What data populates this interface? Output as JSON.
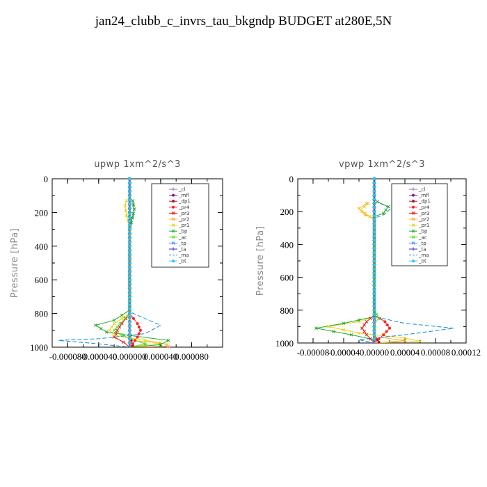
{
  "title": "jan24_clubb_c_invrs_tau_bkgndp  BUDGET at280E,5N",
  "chart_data": [
    {
      "type": "line",
      "title": "upwp   1xm^2/s^3",
      "ylabel": "Pressure [hPa]",
      "xlim": [
        -0.0001,
        0.00012
      ],
      "ylim": [
        1000,
        0
      ],
      "xticks": [
        -8e-05,
        -4e-05,
        0,
        4e-05,
        8e-05
      ],
      "xtick_labels": [
        "-0.000080",
        "-0.000040",
        "0.000000",
        "0.000040",
        "0.000080"
      ],
      "yticks": [
        0,
        200,
        400,
        600,
        800,
        1000
      ],
      "ytick_labels": [
        "0",
        "200",
        "400",
        "600",
        "800",
        "1000"
      ],
      "legend_position": "top-right",
      "series": [
        {
          "name": "_cl",
          "color": "#9966cc",
          "dash": "",
          "marker": "+",
          "points": [
            [
              0,
              0
            ],
            [
              0,
              1000
            ]
          ]
        },
        {
          "name": "_mfl",
          "color": "#7b1f8a",
          "dash": "",
          "marker": "o",
          "points": [
            [
              0,
              0
            ],
            [
              0,
              1000
            ]
          ]
        },
        {
          "name": "_dp1",
          "color": "#aa1133",
          "dash": "",
          "marker": "o",
          "points": [
            [
              0,
              0
            ],
            [
              0,
              900
            ],
            [
              2e-06,
              960
            ],
            [
              4e-06,
              990
            ],
            [
              0,
              1000
            ]
          ]
        },
        {
          "name": "_pr4",
          "color": "#ff2222",
          "dash": "",
          "marker": "o",
          "points": [
            [
              0,
              0
            ],
            [
              0,
              800
            ],
            [
              1e-05,
              860
            ],
            [
              1.4e-05,
              900
            ],
            [
              1e-05,
              940
            ],
            [
              4e-06,
              980
            ],
            [
              0,
              1000
            ]
          ]
        },
        {
          "name": "_pr3",
          "color": "#ee1111",
          "dash": "",
          "marker": "x",
          "points": [
            [
              0,
              0
            ],
            [
              0,
              800
            ],
            [
              -1e-05,
              860
            ],
            [
              -1.6e-05,
              900
            ],
            [
              -2e-05,
              940
            ],
            [
              -8e-06,
              970
            ],
            [
              0,
              1000
            ]
          ]
        },
        {
          "name": "_pr2",
          "color": "#ffaa33",
          "dash": "",
          "marker": "x",
          "points": [
            [
              0,
              0
            ],
            [
              0,
              960
            ],
            [
              4e-05,
              975
            ],
            [
              4.8e-05,
              985
            ],
            [
              5e-05,
              995
            ],
            [
              0,
              1000
            ]
          ]
        },
        {
          "name": "_pr1",
          "color": "#e6d21a",
          "dash": "",
          "marker": "x",
          "points": [
            [
              -4e-06,
              130
            ],
            [
              -6e-06,
              160
            ],
            [
              -4e-06,
              220
            ],
            [
              0,
              280
            ],
            [
              0,
              800
            ],
            [
              -2e-05,
              860
            ],
            [
              -2.6e-05,
              900
            ],
            [
              -2e-05,
              930
            ],
            [
              2e-05,
              960
            ],
            [
              4e-05,
              975
            ],
            [
              0,
              1000
            ]
          ]
        },
        {
          "name": "_bp",
          "color": "#22aa22",
          "dash": "",
          "marker": "x",
          "points": [
            [
              4e-06,
              130
            ],
            [
              6e-06,
              180
            ],
            [
              2e-06,
              260
            ],
            [
              0,
              300
            ],
            [
              0,
              780
            ],
            [
              -2e-05,
              840
            ],
            [
              -4.4e-05,
              870
            ],
            [
              -3e-05,
              910
            ],
            [
              0,
              930
            ],
            [
              5e-05,
              960
            ],
            [
              4e-05,
              985
            ],
            [
              0,
              1000
            ]
          ]
        },
        {
          "name": "_ac",
          "color": "#55dd22",
          "dash": "",
          "marker": "x",
          "points": [
            [
              0,
              0
            ],
            [
              0,
              800
            ],
            [
              -1.2e-05,
              860
            ],
            [
              -2e-05,
              900
            ],
            [
              0,
              950
            ],
            [
              2e-05,
              980
            ],
            [
              0,
              1000
            ]
          ]
        },
        {
          "name": "_tp",
          "color": "#3399ff",
          "dash": "",
          "marker": "x",
          "points": [
            [
              0,
              0
            ],
            [
              0,
              1000
            ]
          ]
        },
        {
          "name": "_ta",
          "color": "#4422cc",
          "dash": "",
          "marker": "+",
          "points": [
            [
              0,
              0
            ],
            [
              0,
              1000
            ]
          ]
        },
        {
          "name": "_ma",
          "color": "#1188dd",
          "dash": "6,3",
          "marker": "",
          "points": [
            [
              4e-06,
              140
            ],
            [
              6e-06,
              200
            ],
            [
              2e-06,
              280
            ],
            [
              0,
              300
            ],
            [
              0,
              790
            ],
            [
              2e-05,
              830
            ],
            [
              4e-05,
              870
            ],
            [
              2e-05,
              920
            ],
            [
              -4e-05,
              950
            ],
            [
              -9.2e-05,
              960
            ],
            [
              -4e-05,
              980
            ],
            [
              0,
              1000
            ]
          ]
        },
        {
          "name": "_bt",
          "color": "#22ccee",
          "dash": "",
          "marker": "o",
          "points": [
            [
              0,
              0
            ],
            [
              0,
              1000
            ]
          ]
        }
      ]
    },
    {
      "type": "line",
      "title": "vpwp   1xm^2/s^3",
      "ylabel": "Pressure [hPa]",
      "xlim": [
        -0.0001,
        0.00012
      ],
      "ylim": [
        1000,
        0
      ],
      "xticks": [
        -8e-05,
        -4e-05,
        0,
        4e-05,
        8e-05,
        0.00012
      ],
      "xtick_labels": [
        "-0.00008",
        "-0.00004",
        "0.00000",
        "0.00004",
        "0.00008",
        "0.00012"
      ],
      "yticks": [
        0,
        200,
        400,
        600,
        800,
        1000
      ],
      "ytick_labels": [
        "0",
        "200",
        "400",
        "600",
        "800",
        "1000"
      ],
      "legend_position": "top-right",
      "series": [
        {
          "name": "_cl",
          "color": "#9966cc",
          "dash": "",
          "marker": "+",
          "points": [
            [
              0,
              0
            ],
            [
              0,
              1000
            ]
          ]
        },
        {
          "name": "_mfl",
          "color": "#7b1f8a",
          "dash": "",
          "marker": "o",
          "points": [
            [
              0,
              0
            ],
            [
              0,
              1000
            ]
          ]
        },
        {
          "name": "_dp1",
          "color": "#aa1133",
          "dash": "",
          "marker": "o",
          "points": [
            [
              0,
              0
            ],
            [
              0,
              960
            ],
            [
              4e-06,
              980
            ],
            [
              6e-06,
              995
            ],
            [
              0,
              1000
            ]
          ]
        },
        {
          "name": "_pr4",
          "color": "#ff2222",
          "dash": "",
          "marker": "o",
          "points": [
            [
              0,
              0
            ],
            [
              0,
              830
            ],
            [
              1.4e-05,
              870
            ],
            [
              2e-05,
              910
            ],
            [
              1.2e-05,
              950
            ],
            [
              0,
              1000
            ]
          ]
        },
        {
          "name": "_pr3",
          "color": "#ee1111",
          "dash": "",
          "marker": "x",
          "points": [
            [
              0,
              0
            ],
            [
              0,
              830
            ],
            [
              -1e-05,
              870
            ],
            [
              -1.6e-05,
              910
            ],
            [
              -1e-05,
              950
            ],
            [
              0,
              1000
            ]
          ]
        },
        {
          "name": "_pr2",
          "color": "#ffaa33",
          "dash": "",
          "marker": "x",
          "points": [
            [
              -1e-05,
              150
            ],
            [
              -2e-05,
              180
            ],
            [
              -1.2e-05,
              220
            ],
            [
              0,
              240
            ],
            [
              0,
              960
            ],
            [
              4e-05,
              985
            ],
            [
              0,
              1000
            ]
          ]
        },
        {
          "name": "_pr1",
          "color": "#e6d21a",
          "dash": "",
          "marker": "x",
          "points": [
            [
              -8e-06,
              150
            ],
            [
              -1.8e-05,
              190
            ],
            [
              -6e-06,
              230
            ],
            [
              0,
              250
            ],
            [
              0,
              840
            ],
            [
              -2e-05,
              870
            ],
            [
              -6e-05,
              900
            ],
            [
              -2e-05,
              940
            ],
            [
              4e-05,
              970
            ],
            [
              6e-05,
              990
            ],
            [
              0,
              1000
            ]
          ]
        },
        {
          "name": "_bp",
          "color": "#22aa22",
          "dash": "",
          "marker": "x",
          "points": [
            [
              4e-06,
              140
            ],
            [
              1.8e-05,
              170
            ],
            [
              1.2e-05,
              210
            ],
            [
              0,
              230
            ],
            [
              0,
              840
            ],
            [
              -4e-05,
              880
            ],
            [
              -7.6e-05,
              910
            ],
            [
              -3e-05,
              950
            ],
            [
              0,
              980
            ],
            [
              0,
              1000
            ]
          ]
        },
        {
          "name": "_ac",
          "color": "#55dd22",
          "dash": "",
          "marker": "x",
          "points": [
            [
              0,
              0
            ],
            [
              0,
              800
            ],
            [
              6e-06,
              850
            ],
            [
              0,
              880
            ],
            [
              0,
              1000
            ]
          ]
        },
        {
          "name": "_tp",
          "color": "#3399ff",
          "dash": "",
          "marker": "x",
          "points": [
            [
              0,
              0
            ],
            [
              0,
              1000
            ]
          ]
        },
        {
          "name": "_ta",
          "color": "#4422cc",
          "dash": "",
          "marker": "+",
          "points": [
            [
              0,
              0
            ],
            [
              0,
              1000
            ]
          ]
        },
        {
          "name": "_ma",
          "color": "#1188dd",
          "dash": "6,3",
          "marker": "",
          "points": [
            [
              8e-06,
              150
            ],
            [
              2.2e-05,
              180
            ],
            [
              1.2e-05,
              220
            ],
            [
              0,
              240
            ],
            [
              0,
              840
            ],
            [
              4e-05,
              880
            ],
            [
              0.000104,
              910
            ],
            [
              4e-05,
              950
            ],
            [
              -2e-05,
              980
            ],
            [
              0,
              1000
            ]
          ]
        },
        {
          "name": "_bt",
          "color": "#22ccee",
          "dash": "",
          "marker": "o",
          "points": [
            [
              0,
              0
            ],
            [
              0,
              1000
            ]
          ]
        }
      ]
    }
  ]
}
